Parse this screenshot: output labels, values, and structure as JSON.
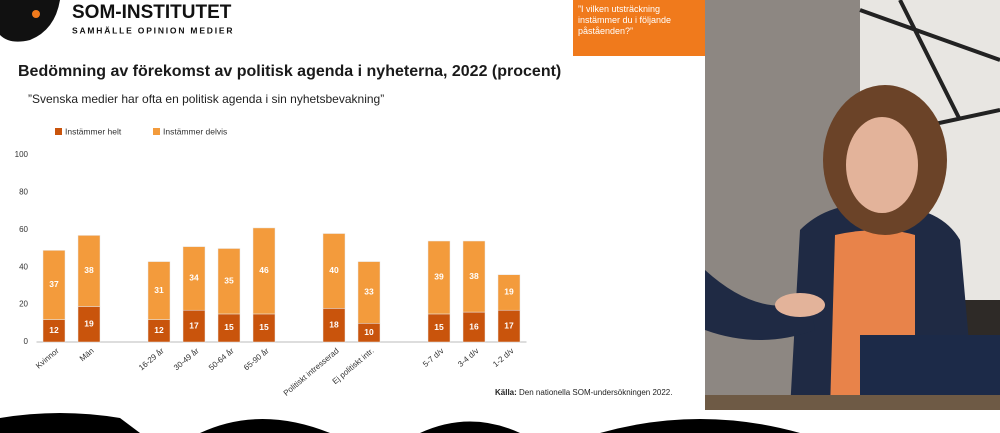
{
  "logo": {
    "name": "SOM-INSTITUTET",
    "tagline": "SAMHÄLLE OPINION MEDIER"
  },
  "question_box": "”I vilken utsträckning instämmer du i följande påståenden?”",
  "source": {
    "label": "Källa:",
    "text": "Den nationella SOM-undersökningen 2022."
  },
  "chart_data": {
    "type": "stacked_bar",
    "title": "Bedömning av förekomst av politisk agenda i nyheterna, 2022 (procent)",
    "subtitle": "”Svenska medier har ofta en politisk agenda i sin nyhetsbevakning”",
    "categories": [
      "Kvinnor",
      "Män",
      null,
      "16-29 år",
      "30-49 år",
      "50-64 år",
      "65-90 år",
      null,
      "Politiskt intresserad",
      "Ej politiskt intr.",
      null,
      "5-7 d/v",
      "3-4 d/v",
      "1-2 d/v"
    ],
    "series": [
      {
        "name": "Instämmer helt",
        "color": "#c9540c",
        "values": [
          12,
          19,
          null,
          12,
          17,
          15,
          15,
          null,
          18,
          10,
          null,
          15,
          16,
          17
        ]
      },
      {
        "name": "Instämmer delvis",
        "color": "#f39b3c",
        "values": [
          37,
          38,
          null,
          31,
          34,
          35,
          46,
          null,
          40,
          33,
          null,
          39,
          38,
          19
        ]
      }
    ],
    "ylim": [
      0,
      100
    ],
    "yticks": [
      0,
      20,
      40,
      60,
      80,
      100
    ],
    "grid": false,
    "legend": "top-left"
  }
}
